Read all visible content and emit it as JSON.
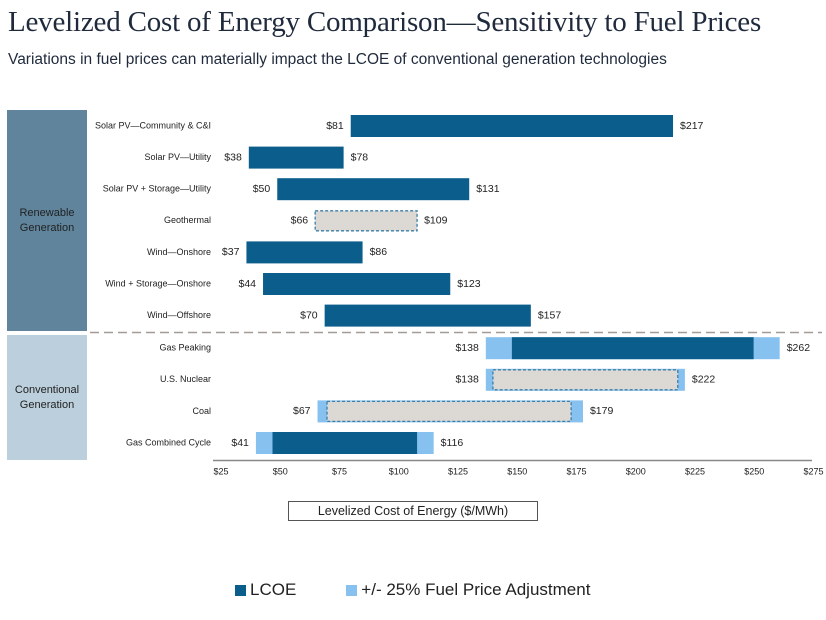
{
  "title": "Levelized Cost of Energy Comparison—Sensitivity to Fuel Prices",
  "subtitle": "Variations in fuel prices can materially impact the LCOE of conventional generation technologies",
  "colors": {
    "lcoe": "#0b5e8c",
    "fuel_adj": "#87c1ef",
    "dashed_fill": "#dcd9d5",
    "dashed_stroke": "#3b7fa8",
    "renewable_panel": "#5f849c",
    "conventional_panel": "#bccfdc",
    "separator": "#a59b93",
    "axis": "#888888"
  },
  "chart_data": {
    "type": "bar",
    "subtype": "floating-range-horizontal",
    "title": "Levelized Cost of Energy Comparison—Sensitivity to Fuel Prices",
    "xlabel": "Levelized Cost of Energy ($/MWh)",
    "ylabel": "",
    "xlim": [
      25,
      275
    ],
    "x_ticks": [
      25,
      50,
      75,
      100,
      125,
      150,
      175,
      200,
      225,
      250,
      275
    ],
    "x_tick_labels": [
      "$25",
      "$50",
      "$75",
      "$100",
      "$125",
      "$150",
      "$175",
      "$200",
      "$225",
      "$250",
      "$275"
    ],
    "grid": false,
    "legend": {
      "position": "bottom",
      "entries": [
        {
          "label": "LCOE",
          "color": "#0b5e8c"
        },
        {
          "label": "+/- 25% Fuel Price Adjustment",
          "color": "#87c1ef"
        }
      ]
    },
    "groups": [
      {
        "label_lines": [
          "Renewable",
          "Generation"
        ],
        "rows": [
          0,
          6
        ]
      },
      {
        "label_lines": [
          "Conventional",
          "Generation"
        ],
        "rows": [
          7,
          10
        ]
      }
    ],
    "series": [
      {
        "name": "Solar PV—Community & C&I",
        "low": 81,
        "high": 217,
        "low_label": "$81",
        "high_label": "$217",
        "style": "solid"
      },
      {
        "name": "Solar PV—Utility",
        "low": 38,
        "high": 78,
        "low_label": "$38",
        "high_label": "$78",
        "style": "solid"
      },
      {
        "name": "Solar PV + Storage—Utility",
        "low": 50,
        "high": 131,
        "low_label": "$50",
        "high_label": "$131",
        "style": "solid"
      },
      {
        "name": "Geothermal",
        "low": 66,
        "high": 109,
        "low_label": "$66",
        "high_label": "$109",
        "style": "dashed"
      },
      {
        "name": "Wind—Onshore",
        "low": 37,
        "high": 86,
        "low_label": "$37",
        "high_label": "$86",
        "style": "solid"
      },
      {
        "name": "Wind + Storage—Onshore",
        "low": 44,
        "high": 123,
        "low_label": "$44",
        "high_label": "$123",
        "style": "solid"
      },
      {
        "name": "Wind—Offshore",
        "low": 70,
        "high": 157,
        "low_label": "$70",
        "high_label": "$157",
        "style": "solid"
      },
      {
        "name": "Gas Peaking",
        "low": 138,
        "high": 262,
        "lcoe_low": 149,
        "lcoe_high": 251,
        "low_label": "$138",
        "high_label": "$262",
        "style": "solid"
      },
      {
        "name": "U.S. Nuclear",
        "low": 138,
        "high": 222,
        "lcoe_low": 141,
        "lcoe_high": 219,
        "low_label": "$138",
        "high_label": "$222",
        "style": "dashed"
      },
      {
        "name": "Coal",
        "low": 67,
        "high": 179,
        "lcoe_low": 71,
        "lcoe_high": 174,
        "low_label": "$67",
        "high_label": "$179",
        "style": "dashed"
      },
      {
        "name": "Gas Combined Cycle",
        "low": 41,
        "high": 116,
        "lcoe_low": 48,
        "lcoe_high": 109,
        "low_label": "$41",
        "high_label": "$116",
        "style": "solid"
      }
    ]
  },
  "legend": {
    "lcoe_label": "LCOE",
    "fuel_label": "+/- 25% Fuel Price Adjustment"
  }
}
